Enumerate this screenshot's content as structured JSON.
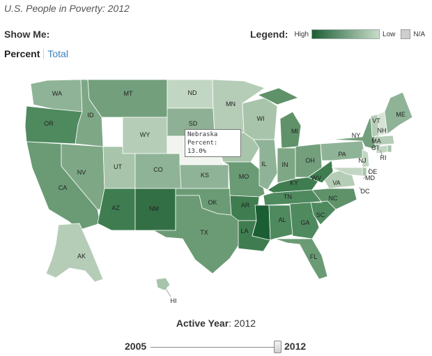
{
  "title": "U.S. People in Poverty: 2012",
  "show_me_label": "Show Me:",
  "legend": {
    "label": "Legend:",
    "high": "High",
    "low": "Low",
    "na": "N/A",
    "high_color": "#1c5e34",
    "low_color": "#c9ddc9",
    "na_color": "#cfcfcf"
  },
  "tabs": {
    "percent": "Percent",
    "total": "Total"
  },
  "tooltip": {
    "state": "Nebraska",
    "value_text": "Percent: 13.0%"
  },
  "active_year": {
    "label": "Active Year",
    "value": ": 2012"
  },
  "slider": {
    "start": "2005",
    "end": "2012",
    "value": 2012
  },
  "states": [
    {
      "abbr": "WA",
      "color": "#8fb397"
    },
    {
      "abbr": "OR",
      "color": "#4f8a5f"
    },
    {
      "abbr": "CA",
      "color": "#6a9b75"
    },
    {
      "abbr": "ID",
      "color": "#7ea786"
    },
    {
      "abbr": "NV",
      "color": "#7ea786"
    },
    {
      "abbr": "MT",
      "color": "#739f7d"
    },
    {
      "abbr": "WY",
      "color": "#b5cdb7"
    },
    {
      "abbr": "UT",
      "color": "#a8c5ab"
    },
    {
      "abbr": "AZ",
      "color": "#3f7d50"
    },
    {
      "abbr": "CO",
      "color": "#8fb397"
    },
    {
      "abbr": "NM",
      "color": "#336f44"
    },
    {
      "abbr": "ND",
      "color": "#c2d7c3"
    },
    {
      "abbr": "SD",
      "color": "#8eb094"
    },
    {
      "abbr": "NE",
      "color": "#f2f5ef"
    },
    {
      "abbr": "KS",
      "color": "#8fb397"
    },
    {
      "abbr": "OK",
      "color": "#6a9b75"
    },
    {
      "abbr": "TX",
      "color": "#6a9b75"
    },
    {
      "abbr": "MN",
      "color": "#b5cdb7"
    },
    {
      "abbr": "IA",
      "color": "#a8c5ab"
    },
    {
      "abbr": "MO",
      "color": "#6a9b75"
    },
    {
      "abbr": "AR",
      "color": "#3f7d50"
    },
    {
      "abbr": "LA",
      "color": "#3f7d50"
    },
    {
      "abbr": "WI",
      "color": "#a8c5ab"
    },
    {
      "abbr": "IL",
      "color": "#8fb397"
    },
    {
      "abbr": "MI",
      "color": "#5f9269"
    },
    {
      "abbr": "IN",
      "color": "#7ea786"
    },
    {
      "abbr": "OH",
      "color": "#739f7d"
    },
    {
      "abbr": "KY",
      "color": "#3f7d50"
    },
    {
      "abbr": "TN",
      "color": "#4f8a5f"
    },
    {
      "abbr": "MS",
      "color": "#1c5e34"
    },
    {
      "abbr": "AL",
      "color": "#4f8a5f"
    },
    {
      "abbr": "GA",
      "color": "#4f8a5f"
    },
    {
      "abbr": "FL",
      "color": "#6a9b75"
    },
    {
      "abbr": "SC",
      "color": "#4f8a5f"
    },
    {
      "abbr": "NC",
      "color": "#5f9269"
    },
    {
      "abbr": "VA",
      "color": "#b5cdb7"
    },
    {
      "abbr": "WV",
      "color": "#3f7d50"
    },
    {
      "abbr": "PA",
      "color": "#8fb397"
    },
    {
      "abbr": "NY",
      "color": "#739f7d"
    },
    {
      "abbr": "NJ",
      "color": "#c2d7c3"
    },
    {
      "abbr": "DE",
      "color": "#a8c5ab"
    },
    {
      "abbr": "MD",
      "color": "#c2d7c3"
    },
    {
      "abbr": "DC",
      "color": "#5f9269"
    },
    {
      "abbr": "CT",
      "color": "#c2d7c3"
    },
    {
      "abbr": "RI",
      "color": "#a8c5ab"
    },
    {
      "abbr": "MA",
      "color": "#b5cdb7"
    },
    {
      "abbr": "VT",
      "color": "#b5cdb7"
    },
    {
      "abbr": "NH",
      "color": "#d7e3d4"
    },
    {
      "abbr": "ME",
      "color": "#8fb397"
    },
    {
      "abbr": "AK",
      "color": "#b5cdb7"
    },
    {
      "abbr": "HI",
      "color": "#a8c5ab"
    }
  ]
}
